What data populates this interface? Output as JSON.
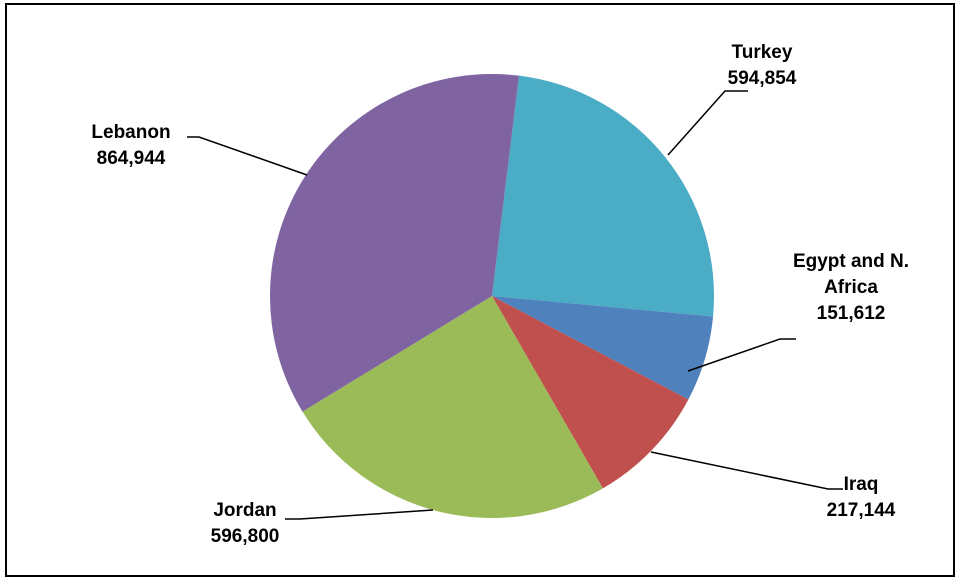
{
  "chart_data": {
    "type": "pie",
    "slices": [
      {
        "label": "Turkey",
        "label_lines": [
          "Turkey"
        ],
        "value_text": "594,854",
        "value": 594854,
        "color": "#4BACC6"
      },
      {
        "label": "Egypt and N. Africa",
        "label_lines": [
          "Egypt and N.",
          "Africa"
        ],
        "value_text": "151,612",
        "value": 151612,
        "color": "#4F81BD"
      },
      {
        "label": "Iraq",
        "label_lines": [
          "Iraq"
        ],
        "value_text": "217,144",
        "value": 217144,
        "color": "#C0504D"
      },
      {
        "label": "Jordan",
        "label_lines": [
          "Jordan"
        ],
        "value_text": "596,800",
        "value": 596800,
        "color": "#9BBB59"
      },
      {
        "label": "Lebanon",
        "label_lines": [
          "Lebanon"
        ],
        "value_text": "864,944",
        "value": 864944,
        "color": "#8064A2"
      }
    ],
    "start_angle_deg": 7,
    "direction": "clockwise",
    "legend": "none"
  }
}
